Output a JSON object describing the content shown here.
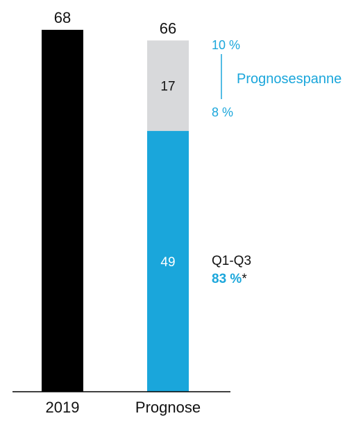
{
  "chart_data": {
    "type": "bar",
    "stacked": true,
    "categories": [
      "2019",
      "Prognose"
    ],
    "series": [
      {
        "values": [
          68,
          null
        ],
        "color": "#000000"
      },
      {
        "values": [
          null,
          49
        ],
        "color": "#1aa6db"
      },
      {
        "values": [
          null,
          17
        ],
        "color": "#d8d9db"
      }
    ],
    "totals": [
      68,
      66
    ],
    "segment_labels": [
      "49",
      "17"
    ],
    "ylim": [
      0,
      70
    ],
    "grid": false,
    "legend": "none"
  },
  "annotations": {
    "range_top": "10 %",
    "range_bottom": "8 %",
    "range_label": "Prognosespanne",
    "q_label": "Q1-Q3",
    "q_value": "83 %",
    "q_footnote": "*"
  },
  "colors": {
    "accent": "#1aa6db",
    "base": "#000000",
    "range": "#d8d9db"
  }
}
